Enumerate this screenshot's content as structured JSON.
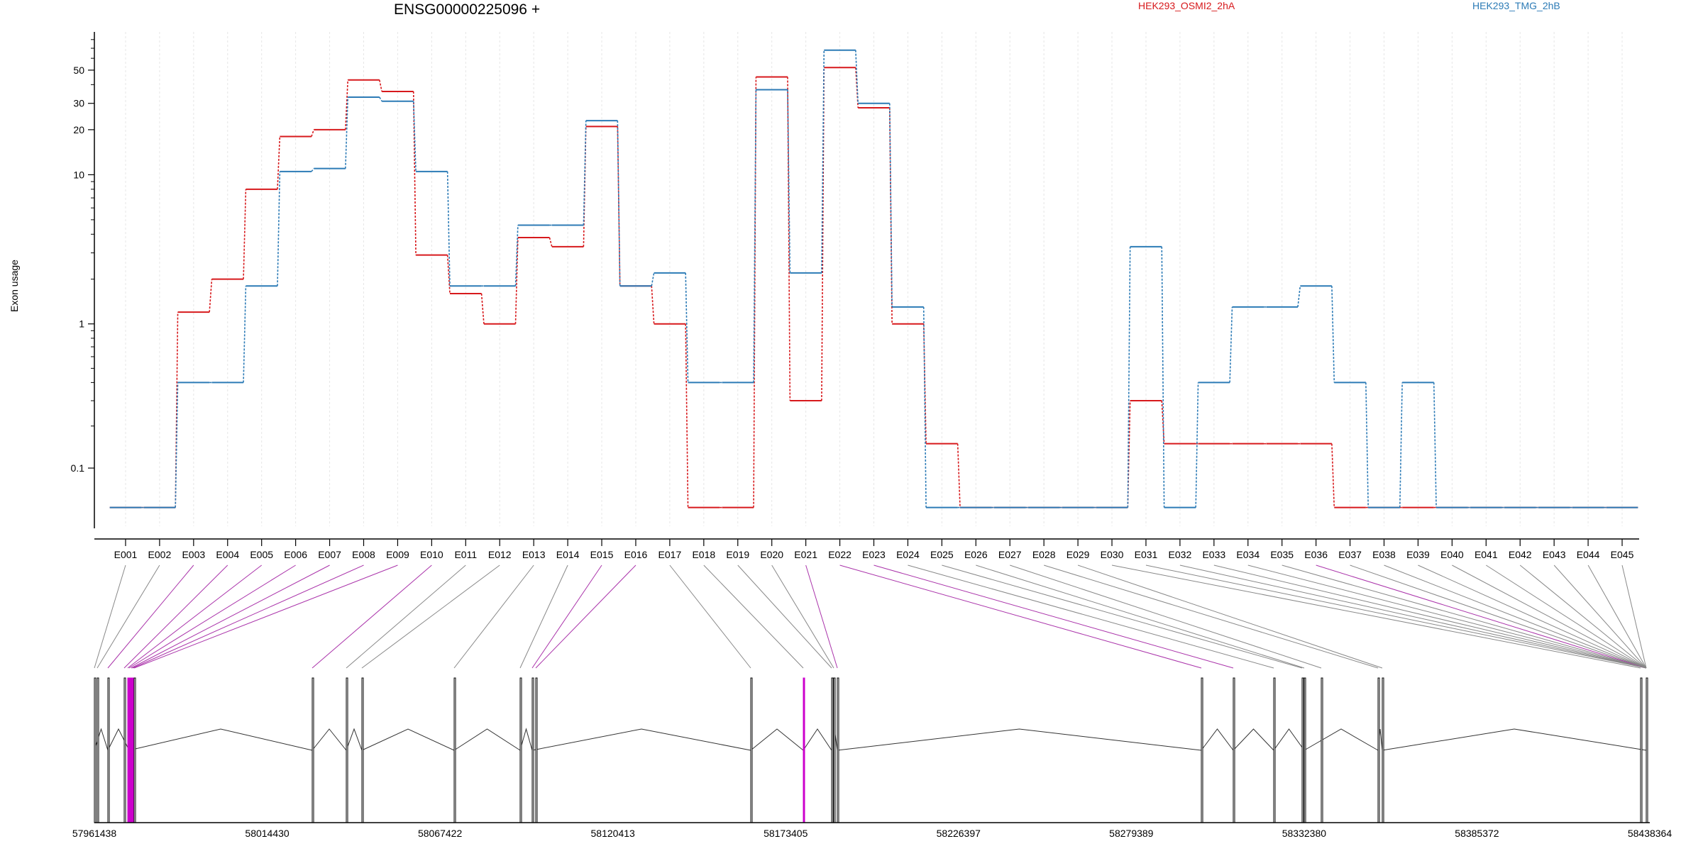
{
  "chart_data": {
    "type": "line",
    "title": "ENSG00000225096 +",
    "ylabel": "Exon usage",
    "xlabel": "",
    "y_scale": "log (pseudo)",
    "y_ticks": [
      0.1,
      1,
      10,
      20,
      30,
      50
    ],
    "y_tick_labels": [
      "0.1",
      "1",
      "10",
      "20",
      "30",
      "50"
    ],
    "categories": [
      "E001",
      "E002",
      "E003",
      "E004",
      "E005",
      "E006",
      "E007",
      "E008",
      "E009",
      "E010",
      "E011",
      "E012",
      "E013",
      "E014",
      "E015",
      "E016",
      "E017",
      "E018",
      "E019",
      "E020",
      "E021",
      "E022",
      "E023",
      "E024",
      "E025",
      "E026",
      "E027",
      "E028",
      "E029",
      "E030",
      "E031",
      "E032",
      "E033",
      "E034",
      "E035",
      "E036",
      "E037",
      "E038",
      "E039",
      "E040",
      "E041",
      "E042",
      "E043",
      "E044",
      "E045"
    ],
    "series": [
      {
        "name": "HEK293_OSMI2_2hA",
        "color": "#d7191c",
        "values": [
          0.05,
          0.05,
          1.2,
          2.0,
          8.0,
          18.0,
          20.0,
          43.0,
          36.0,
          2.9,
          1.6,
          1.0,
          3.8,
          3.3,
          21.0,
          1.8,
          1.0,
          0.05,
          0.05,
          45.0,
          0.3,
          52.0,
          28.0,
          1.0,
          0.15,
          0.05,
          0.05,
          0.05,
          0.05,
          0.05,
          0.3,
          0.15,
          0.15,
          0.15,
          0.15,
          0.15,
          0.05,
          0.05,
          0.05,
          0.05,
          0.05,
          0.05,
          0.05,
          0.05,
          0.05
        ]
      },
      {
        "name": "HEK293_TMG_2hB",
        "color": "#2c7bb6",
        "values": [
          0.05,
          0.05,
          0.4,
          0.4,
          1.8,
          10.5,
          11.0,
          33.0,
          31.0,
          10.5,
          1.8,
          1.8,
          4.6,
          4.6,
          23.0,
          1.8,
          2.2,
          0.4,
          0.4,
          37.0,
          2.2,
          68.0,
          30.0,
          1.3,
          0.05,
          0.05,
          0.05,
          0.05,
          0.05,
          0.05,
          3.3,
          0.05,
          0.4,
          1.3,
          1.3,
          1.8,
          0.4,
          0.05,
          0.4,
          0.05,
          0.05,
          0.05,
          0.05,
          0.05,
          0.05
        ]
      }
    ],
    "genomic_axis": {
      "tick_labels": [
        "57961438",
        "58014430",
        "58067422",
        "58120413",
        "58173405",
        "58226397",
        "58279389",
        "58332380",
        "58385372",
        "58438364"
      ],
      "range": [
        57961438,
        58438364
      ]
    }
  },
  "colors": {
    "series1": "#d7191c",
    "series2": "#2c7bb6",
    "highlight": "#aa33aa",
    "magenta": "#cc00cc"
  }
}
